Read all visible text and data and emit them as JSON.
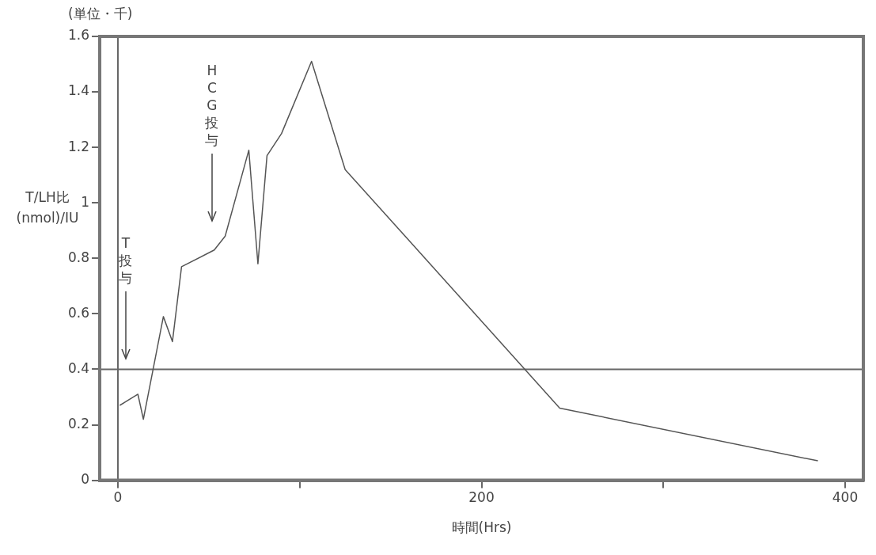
{
  "chart_data": {
    "type": "line",
    "xlabel": "時間(Hrs)",
    "ylabel": "T/LH比(nmol)/IU",
    "annotations": [
      "(単位・千)",
      "T投与",
      "HCG投与"
    ],
    "series": [
      {
        "color": "#555555",
        "x": [
          1,
          11,
          14,
          25,
          30,
          35,
          53,
          59,
          72,
          77,
          82,
          90,
          106.5,
          125,
          243,
          385
        ],
        "values": [
          0.27,
          0.31,
          0.22,
          0.59,
          0.5,
          0.77,
          0.83,
          0.88,
          1.19,
          0.78,
          1.17,
          1.25,
          1.51,
          1.12,
          0.26,
          0.07
        ]
      }
    ],
    "xlim": [
      -10,
      410
    ],
    "xticks": [
      0,
      {
        "value": 100,
        "label": null
      },
      200,
      {
        "value": 300,
        "label": null
      },
      400
    ],
    "ylim": [
      0,
      1.6
    ],
    "yticks": [
      0,
      0.2,
      0.4,
      0.6,
      0.8,
      {
        "value": 1,
        "label": "1"
      },
      1.2,
      1.4,
      1.6
    ],
    "ref_lines": [
      {
        "axis": "y",
        "value": 0.4,
        "color": "#666666"
      },
      {
        "axis": "x",
        "value": 0,
        "color": "#666666"
      }
    ],
    "grid": false,
    "legend": false,
    "marker": "none",
    "line_style": "solid"
  }
}
